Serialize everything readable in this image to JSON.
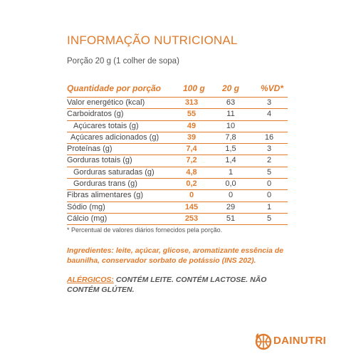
{
  "title": "INFORMAÇÃO NUTRICIONAL",
  "portion": "Porção 20 g (1 colher de sopa)",
  "table": {
    "headers": [
      "Quantidade por porção",
      "100 g",
      "20 g",
      "%VD*"
    ],
    "rows": [
      {
        "label": "Valor energético (kcal)",
        "v100": "313",
        "v20": "63",
        "vd": "3"
      },
      {
        "label": "Carboidratos (g)",
        "v100": "55",
        "v20": "11",
        "vd": "4"
      },
      {
        "label": "Açúcares totais (g)",
        "v100": "49",
        "v20": "10",
        "vd": ""
      },
      {
        "label": "Açúcares adicionados (g)",
        "v100": "39",
        "v20": "7,8",
        "vd": "16"
      },
      {
        "label": "Proteínas (g)",
        "v100": "7,4",
        "v20": "1,5",
        "vd": "3"
      },
      {
        "label": "Gorduras totais (g)",
        "v100": "7,2",
        "v20": "1,4",
        "vd": "2"
      },
      {
        "label": "Gorduras saturadas (g)",
        "v100": "4,8",
        "v20": "1",
        "vd": "5"
      },
      {
        "label": "Gorduras trans (g)",
        "v100": "0,2",
        "v20": "0,0",
        "vd": "0"
      },
      {
        "label": "Fibras alimentares (g)",
        "v100": "0",
        "v20": "0",
        "vd": "0"
      },
      {
        "label": "Sódio (mg)",
        "v100": "145",
        "v20": "29",
        "vd": "1"
      },
      {
        "label": "Cálcio (mg)",
        "v100": "253",
        "v20": "51",
        "vd": "5"
      }
    ]
  },
  "footnote": "* Percentual de valores diários fornecidos pela porção.",
  "ingredients": "Ingredientes: leite, açúcar, glicose, aromatizante essência de baunilha, conservador sorbato de potássio (INS 202).",
  "allergens": {
    "label": "ALÉRGICOS:",
    "text": " CONTÉM LEITE. CONTÉM LACTOSE. NÃO CONTÉM GLÚTEN."
  },
  "brand": {
    "name": "DAINUTRI",
    "icon": "basketball-flame-logo-icon",
    "color": "#e07a2c"
  }
}
